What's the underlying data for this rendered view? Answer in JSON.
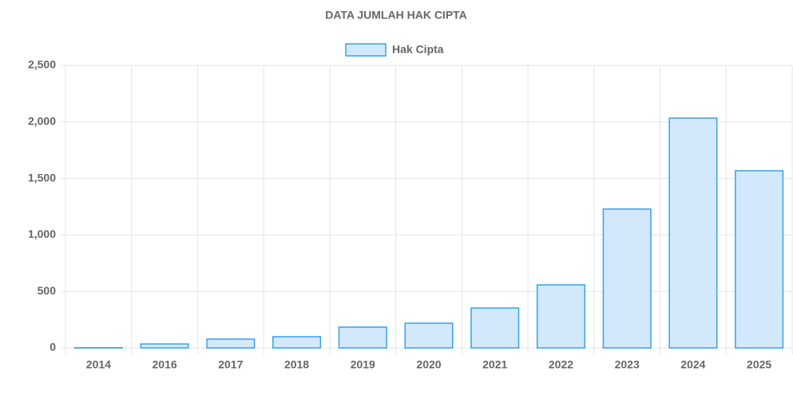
{
  "chart_data": {
    "type": "bar",
    "title": "DATA JUMLAH HAK CIPTA",
    "categories": [
      "2014",
      "2016",
      "2017",
      "2018",
      "2019",
      "2020",
      "2021",
      "2022",
      "2023",
      "2024",
      "2025"
    ],
    "series": [
      {
        "name": "Hak Cipta",
        "color": "#36a2eb",
        "fill": "#d4e8fb",
        "values": [
          2,
          35,
          78,
          99,
          184,
          219,
          353,
          558,
          1229,
          2034,
          1568
        ]
      }
    ],
    "ylim": [
      0,
      2500
    ],
    "yticks": [
      0,
      500,
      {
        "value": 1000,
        "label": "1,000"
      },
      {
        "value": 1500,
        "label": "1,500"
      },
      {
        "value": 2000,
        "label": "2,000"
      },
      {
        "value": 2500,
        "label": "2,500"
      }
    ],
    "grid": true,
    "legend": "top"
  }
}
